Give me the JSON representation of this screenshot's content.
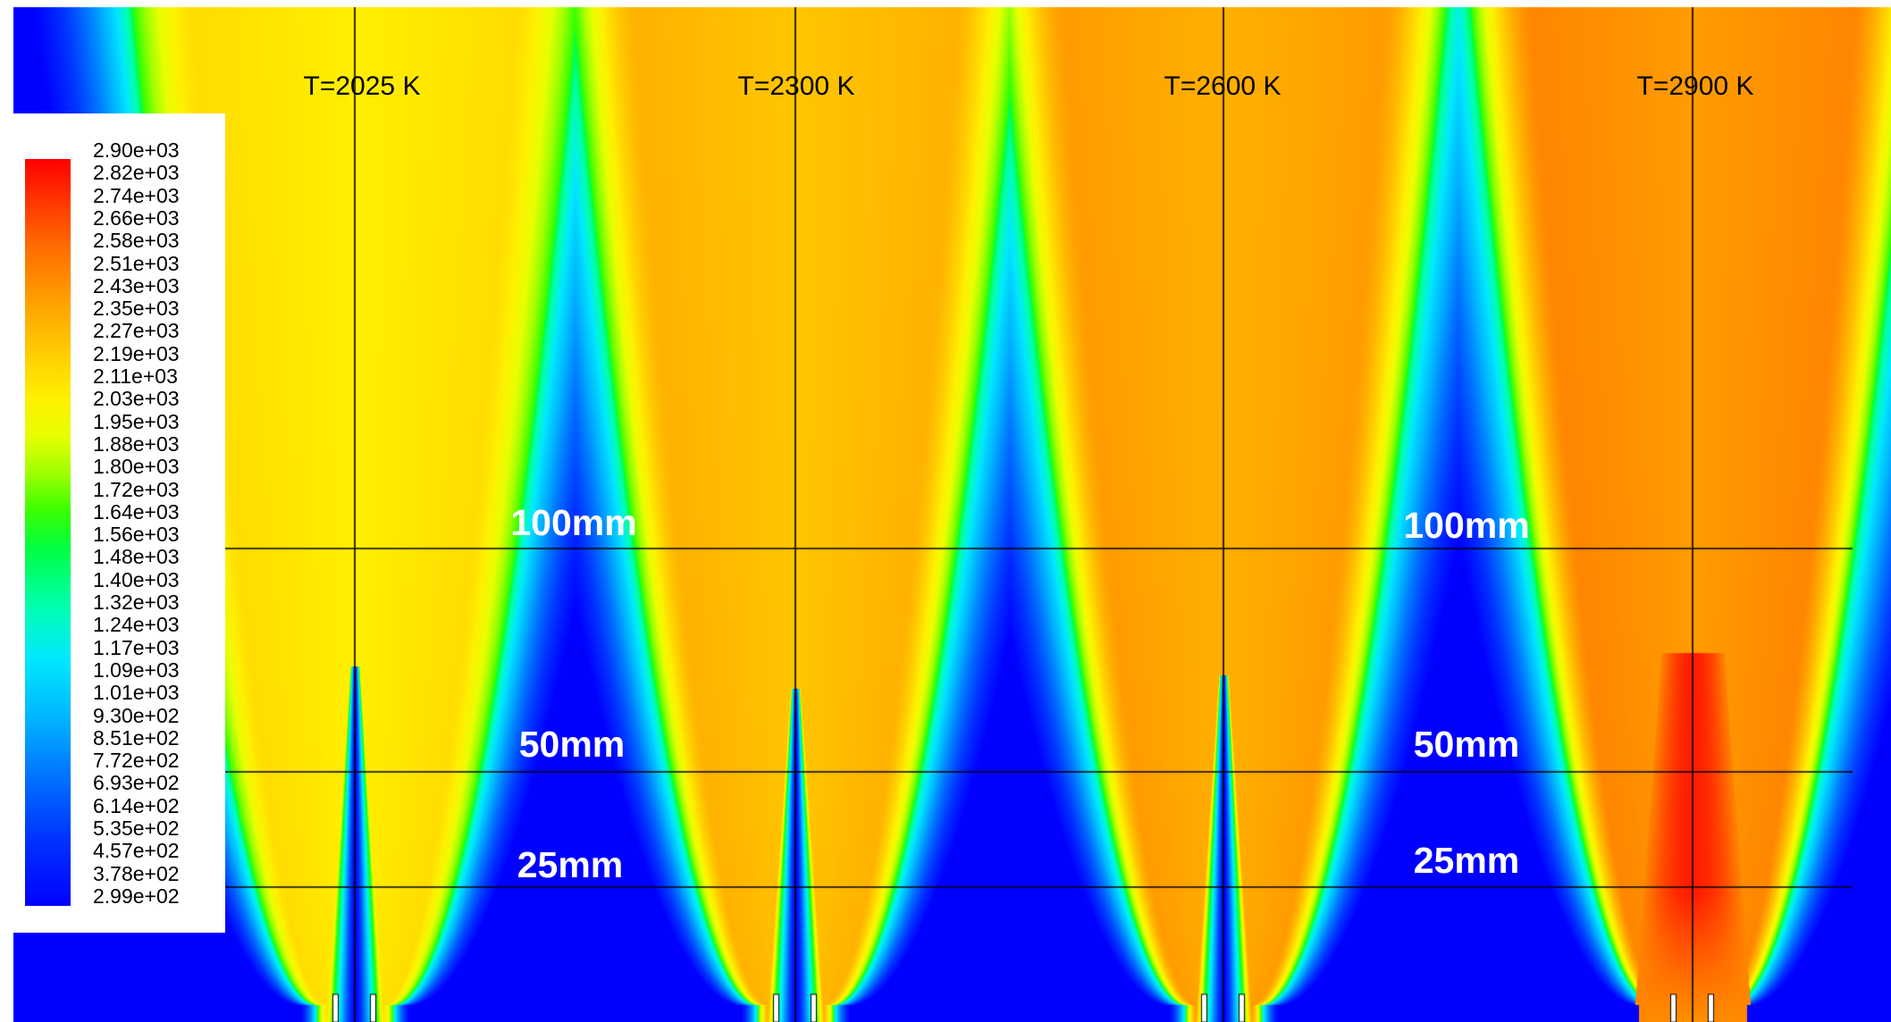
{
  "figure": {
    "panels": [
      {
        "title": "T=2025 K",
        "peak": 2150,
        "hot_core": false
      },
      {
        "title": "T=2300 K",
        "peak": 2330,
        "hot_core": false
      },
      {
        "title": "T=2600 K",
        "peak": 2420,
        "hot_core": false
      },
      {
        "title": "T=2900 K",
        "peak": 2500,
        "hot_core": true
      }
    ],
    "height_labels": {
      "left": [
        "100mm",
        "50mm",
        "25mm"
      ],
      "right": [
        "100mm",
        "50mm",
        "25mm"
      ]
    }
  },
  "legend": {
    "ticks": [
      "2.90e+03",
      "2.82e+03",
      "2.74e+03",
      "2.66e+03",
      "2.58e+03",
      "2.51e+03",
      "2.43e+03",
      "2.35e+03",
      "2.27e+03",
      "2.19e+03",
      "2.11e+03",
      "2.03e+03",
      "1.95e+03",
      "1.88e+03",
      "1.80e+03",
      "1.72e+03",
      "1.64e+03",
      "1.56e+03",
      "1.48e+03",
      "1.40e+03",
      "1.32e+03",
      "1.24e+03",
      "1.17e+03",
      "1.09e+03",
      "1.01e+03",
      "9.30e+02",
      "8.51e+02",
      "7.72e+02",
      "6.93e+02",
      "6.14e+02",
      "5.35e+02",
      "4.57e+02",
      "3.78e+02",
      "2.99e+02"
    ],
    "min": 299,
    "max": 2900
  },
  "colors": {
    "background": "#0000ff",
    "line": "#000000",
    "label": "#ffffff"
  }
}
